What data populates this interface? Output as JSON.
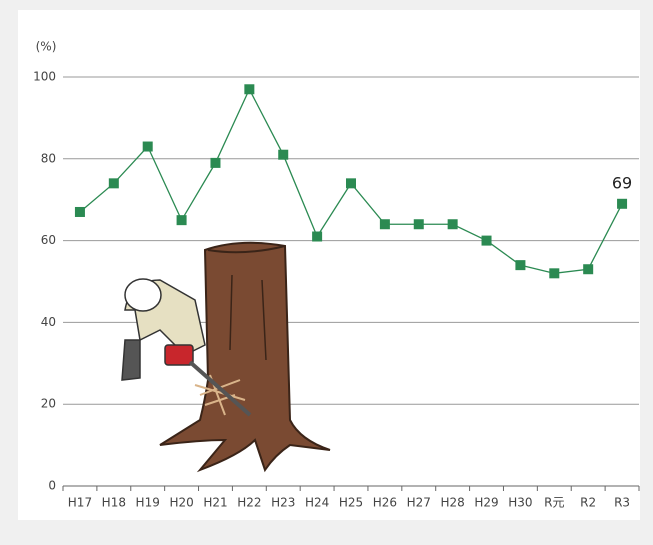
{
  "chart_data": {
    "type": "line",
    "y_label": "(%)",
    "categories": [
      "H17",
      "H18",
      "H19",
      "H20",
      "H21",
      "H22",
      "H23",
      "H24",
      "H25",
      "H26",
      "H27",
      "H28",
      "H29",
      "H30",
      "R元",
      "R2",
      "R3"
    ],
    "values": [
      67,
      74,
      83,
      65,
      79,
      97,
      81,
      61,
      74,
      64,
      64,
      64,
      60,
      54,
      52,
      53,
      69
    ],
    "color": "#2b8a52",
    "ylim": [
      0,
      100
    ],
    "yticks": [
      0,
      20,
      40,
      60,
      80,
      100
    ],
    "grid": true
  }
}
